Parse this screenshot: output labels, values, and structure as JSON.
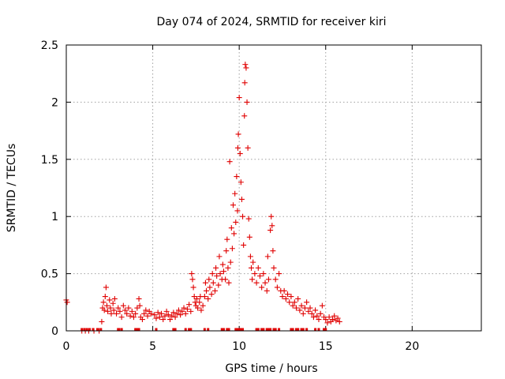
{
  "chart_data": {
    "type": "scatter",
    "title": "Day 074 of 2024, SRMTID for receiver kiri",
    "xlabel": "GPS time / hours",
    "ylabel": "SRMTID / TECUs",
    "xlim": [
      0,
      24
    ],
    "ylim": [
      0,
      2.5
    ],
    "xticks": [
      0,
      5,
      10,
      15,
      20
    ],
    "xtick_labels": [
      "0",
      "5",
      "10",
      "15",
      "20"
    ],
    "yticks": [
      0,
      0.5,
      1,
      1.5,
      2,
      2.5
    ],
    "ytick_labels": [
      "0",
      "0.5",
      "1",
      "1.5",
      "2",
      "2.5"
    ],
    "grid": true,
    "marker": "plus",
    "series": [
      {
        "name": "SRMTID",
        "color": "#e00000",
        "points": [
          [
            0.0,
            0.27
          ],
          [
            0.05,
            0.25
          ],
          [
            0.9,
            0.0
          ],
          [
            1.1,
            0.0
          ],
          [
            1.3,
            0.0
          ],
          [
            1.6,
            0.0
          ],
          [
            1.9,
            0.0
          ],
          [
            2.05,
            0.08
          ],
          [
            2.1,
            0.2
          ],
          [
            2.15,
            0.25
          ],
          [
            2.2,
            0.18
          ],
          [
            2.25,
            0.3
          ],
          [
            2.3,
            0.38
          ],
          [
            2.35,
            0.22
          ],
          [
            2.4,
            0.17
          ],
          [
            2.5,
            0.27
          ],
          [
            2.55,
            0.2
          ],
          [
            2.6,
            0.15
          ],
          [
            2.7,
            0.24
          ],
          [
            2.75,
            0.18
          ],
          [
            2.8,
            0.28
          ],
          [
            2.9,
            0.15
          ],
          [
            3.0,
            0.2
          ],
          [
            3.1,
            0.17
          ],
          [
            3.2,
            0.12
          ],
          [
            3.3,
            0.22
          ],
          [
            3.4,
            0.18
          ],
          [
            3.5,
            0.15
          ],
          [
            3.6,
            0.2
          ],
          [
            3.7,
            0.13
          ],
          [
            3.8,
            0.17
          ],
          [
            3.9,
            0.12
          ],
          [
            4.0,
            0.15
          ],
          [
            4.1,
            0.2
          ],
          [
            4.2,
            0.28
          ],
          [
            4.25,
            0.22
          ],
          [
            4.3,
            0.12
          ],
          [
            4.4,
            0.1
          ],
          [
            4.5,
            0.15
          ],
          [
            4.6,
            0.18
          ],
          [
            4.7,
            0.13
          ],
          [
            4.8,
            0.17
          ],
          [
            4.9,
            0.15
          ],
          [
            5.1,
            0.14
          ],
          [
            5.2,
            0.11
          ],
          [
            5.3,
            0.16
          ],
          [
            5.4,
            0.12
          ],
          [
            5.5,
            0.15
          ],
          [
            5.6,
            0.1
          ],
          [
            5.7,
            0.13
          ],
          [
            5.8,
            0.17
          ],
          [
            5.9,
            0.14
          ],
          [
            6.0,
            0.1
          ],
          [
            6.1,
            0.13
          ],
          [
            6.2,
            0.16
          ],
          [
            6.3,
            0.12
          ],
          [
            6.4,
            0.15
          ],
          [
            6.5,
            0.18
          ],
          [
            6.6,
            0.14
          ],
          [
            6.7,
            0.17
          ],
          [
            6.8,
            0.2
          ],
          [
            6.9,
            0.15
          ],
          [
            7.0,
            0.19
          ],
          [
            7.1,
            0.23
          ],
          [
            7.2,
            0.17
          ],
          [
            7.25,
            0.5
          ],
          [
            7.3,
            0.45
          ],
          [
            7.35,
            0.38
          ],
          [
            7.4,
            0.3
          ],
          [
            7.45,
            0.25
          ],
          [
            7.5,
            0.22
          ],
          [
            7.55,
            0.28
          ],
          [
            7.6,
            0.2
          ],
          [
            7.7,
            0.25
          ],
          [
            7.75,
            0.3
          ],
          [
            7.8,
            0.18
          ],
          [
            7.9,
            0.22
          ],
          [
            8.0,
            0.3
          ],
          [
            8.05,
            0.42
          ],
          [
            8.1,
            0.35
          ],
          [
            8.2,
            0.28
          ],
          [
            8.25,
            0.45
          ],
          [
            8.3,
            0.38
          ],
          [
            8.4,
            0.32
          ],
          [
            8.45,
            0.5
          ],
          [
            8.5,
            0.42
          ],
          [
            8.6,
            0.35
          ],
          [
            8.65,
            0.55
          ],
          [
            8.7,
            0.48
          ],
          [
            8.8,
            0.4
          ],
          [
            8.85,
            0.65
          ],
          [
            8.9,
            0.5
          ],
          [
            9.0,
            0.45
          ],
          [
            9.05,
            0.58
          ],
          [
            9.1,
            0.52
          ],
          [
            9.2,
            0.45
          ],
          [
            9.25,
            0.7
          ],
          [
            9.3,
            0.8
          ],
          [
            9.35,
            0.55
          ],
          [
            9.4,
            0.42
          ],
          [
            9.45,
            1.48
          ],
          [
            9.5,
            0.6
          ],
          [
            9.55,
            0.9
          ],
          [
            9.6,
            0.72
          ],
          [
            9.65,
            1.1
          ],
          [
            9.7,
            0.85
          ],
          [
            9.75,
            1.2
          ],
          [
            9.8,
            0.95
          ],
          [
            9.85,
            1.35
          ],
          [
            9.9,
            1.05
          ],
          [
            9.92,
            1.6
          ],
          [
            9.95,
            1.72
          ],
          [
            10.0,
            2.04
          ],
          [
            10.05,
            1.55
          ],
          [
            10.1,
            1.3
          ],
          [
            10.15,
            1.15
          ],
          [
            10.2,
            1.0
          ],
          [
            10.25,
            0.75
          ],
          [
            10.3,
            1.88
          ],
          [
            10.32,
            2.17
          ],
          [
            10.35,
            2.33
          ],
          [
            10.4,
            2.3
          ],
          [
            10.45,
            2.0
          ],
          [
            10.5,
            1.6
          ],
          [
            10.55,
            0.98
          ],
          [
            10.6,
            0.82
          ],
          [
            10.65,
            0.65
          ],
          [
            10.7,
            0.55
          ],
          [
            10.75,
            0.45
          ],
          [
            10.8,
            0.6
          ],
          [
            10.9,
            0.5
          ],
          [
            11.0,
            0.42
          ],
          [
            11.1,
            0.55
          ],
          [
            11.2,
            0.48
          ],
          [
            11.3,
            0.38
          ],
          [
            11.4,
            0.5
          ],
          [
            11.5,
            0.42
          ],
          [
            11.6,
            0.35
          ],
          [
            11.65,
            0.65
          ],
          [
            11.7,
            0.45
          ],
          [
            11.8,
            0.88
          ],
          [
            11.85,
            1.0
          ],
          [
            11.9,
            0.92
          ],
          [
            11.95,
            0.7
          ],
          [
            12.0,
            0.55
          ],
          [
            12.1,
            0.45
          ],
          [
            12.2,
            0.38
          ],
          [
            12.3,
            0.5
          ],
          [
            12.4,
            0.35
          ],
          [
            12.5,
            0.3
          ],
          [
            12.6,
            0.35
          ],
          [
            12.7,
            0.28
          ],
          [
            12.8,
            0.32
          ],
          [
            12.9,
            0.25
          ],
          [
            13.0,
            0.3
          ],
          [
            13.1,
            0.22
          ],
          [
            13.2,
            0.25
          ],
          [
            13.3,
            0.2
          ],
          [
            13.4,
            0.28
          ],
          [
            13.5,
            0.18
          ],
          [
            13.6,
            0.22
          ],
          [
            13.7,
            0.15
          ],
          [
            13.8,
            0.2
          ],
          [
            13.9,
            0.25
          ],
          [
            14.0,
            0.17
          ],
          [
            14.1,
            0.2
          ],
          [
            14.2,
            0.15
          ],
          [
            14.3,
            0.12
          ],
          [
            14.4,
            0.18
          ],
          [
            14.5,
            0.13
          ],
          [
            14.6,
            0.1
          ],
          [
            14.7,
            0.15
          ],
          [
            14.8,
            0.22
          ],
          [
            14.9,
            0.12
          ],
          [
            15.0,
            0.1
          ],
          [
            15.1,
            0.07
          ],
          [
            15.2,
            0.12
          ],
          [
            15.3,
            0.08
          ],
          [
            15.4,
            0.1
          ],
          [
            15.5,
            0.13
          ],
          [
            15.6,
            0.09
          ],
          [
            15.7,
            0.11
          ],
          [
            15.8,
            0.08
          ]
        ],
        "zero_markers": [
          0.9,
          1.05,
          1.2,
          1.35,
          1.55,
          1.8,
          2.0,
          3.0,
          3.05,
          3.2,
          4.0,
          4.1,
          4.2,
          5.2,
          6.2,
          6.3,
          6.9,
          7.1,
          7.2,
          8.0,
          8.2,
          9.0,
          9.1,
          9.3,
          9.4,
          9.8,
          9.9,
          10.0,
          10.05,
          10.1,
          10.2,
          11.0,
          11.1,
          11.3,
          11.4,
          11.6,
          11.7,
          11.8,
          12.0,
          12.1,
          12.3,
          13.0,
          13.1,
          13.3,
          13.4,
          13.6,
          13.7,
          13.9,
          14.4,
          14.6,
          14.9,
          15.0
        ]
      }
    ]
  }
}
